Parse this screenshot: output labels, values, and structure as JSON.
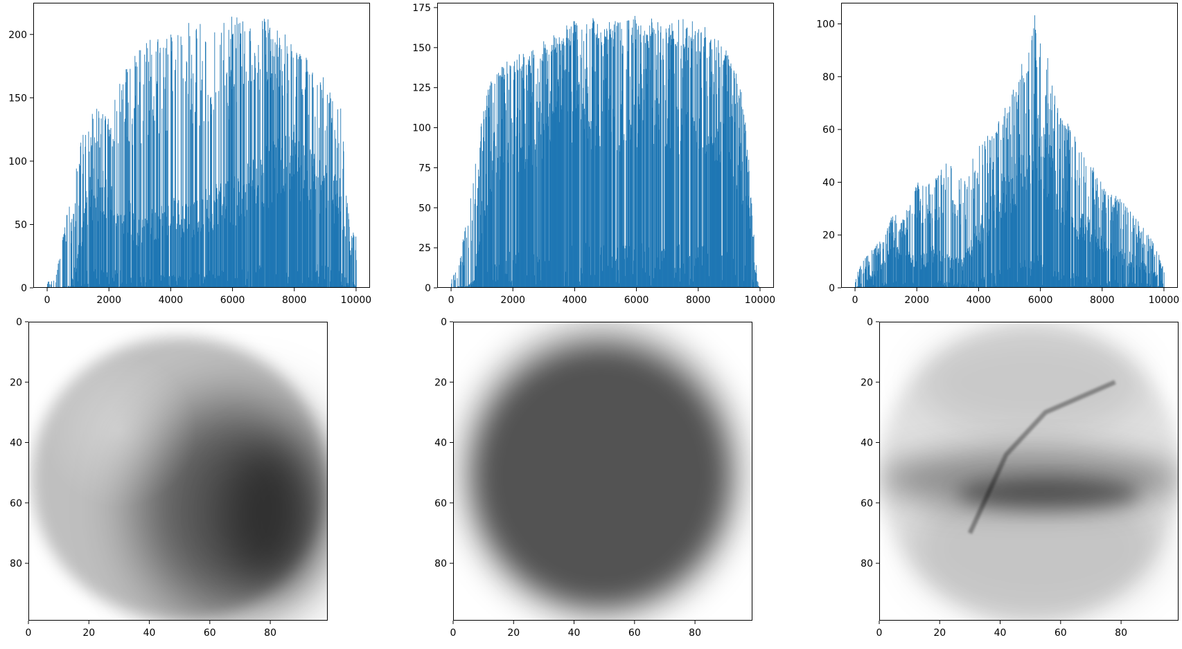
{
  "chart_data": [
    {
      "type": "bar",
      "title": "",
      "xlabel": "",
      "ylabel": "",
      "xlim": [
        0,
        10000
      ],
      "ylim": [
        0,
        225
      ],
      "xticks": [
        0,
        2000,
        4000,
        6000,
        8000,
        10000
      ],
      "xtick_labels": [
        "0",
        "2000",
        "4000",
        "6000",
        "8000",
        "10000"
      ],
      "yticks": [
        0,
        50,
        100,
        150,
        200
      ],
      "ytick_labels": [
        "0",
        "50",
        "100",
        "150",
        "200"
      ],
      "bar_color": "#1f77b4",
      "profile": {
        "x": [
          0,
          250,
          500,
          750,
          1000,
          1250,
          1500,
          2000,
          2500,
          3000,
          3500,
          4000,
          4500,
          5000,
          5500,
          6000,
          6500,
          7000,
          7500,
          8000,
          8500,
          9000,
          9500,
          9800,
          10000
        ],
        "peak": [
          5,
          6,
          40,
          80,
          100,
          150,
          150,
          140,
          180,
          190,
          200,
          200,
          210,
          210,
          205,
          215,
          220,
          220,
          205,
          195,
          180,
          170,
          145,
          40,
          48
        ],
        "base": [
          0,
          0,
          1,
          2,
          30,
          70,
          90,
          80,
          70,
          50,
          60,
          70,
          60,
          70,
          75,
          80,
          90,
          100,
          110,
          120,
          100,
          90,
          80,
          10,
          0
        ]
      }
    },
    {
      "type": "bar",
      "title": "",
      "xlabel": "",
      "ylabel": "",
      "xlim": [
        0,
        10000
      ],
      "ylim": [
        0,
        178
      ],
      "xticks": [
        0,
        2000,
        4000,
        6000,
        8000,
        10000
      ],
      "xtick_labels": [
        "0",
        "2000",
        "4000",
        "6000",
        "8000",
        "10000"
      ],
      "yticks": [
        0,
        25,
        50,
        75,
        100,
        125,
        150,
        175
      ],
      "ytick_labels": [
        "0",
        "25",
        "50",
        "75",
        "100",
        "125",
        "150",
        "175"
      ],
      "bar_color": "#1f77b4",
      "profile": {
        "x": [
          0,
          250,
          500,
          750,
          1000,
          1250,
          1500,
          2000,
          2500,
          3000,
          3500,
          4000,
          4500,
          5000,
          5500,
          6000,
          6500,
          7000,
          7500,
          8000,
          8500,
          9000,
          9500,
          9900,
          10000
        ],
        "peak": [
          5,
          15,
          45,
          75,
          110,
          130,
          140,
          145,
          150,
          155,
          160,
          170,
          170,
          165,
          170,
          170,
          170,
          165,
          170,
          165,
          160,
          150,
          115,
          5,
          0
        ],
        "base": [
          0,
          1,
          1,
          5,
          60,
          90,
          110,
          115,
          120,
          130,
          135,
          140,
          140,
          138,
          140,
          140,
          140,
          138,
          138,
          135,
          128,
          110,
          80,
          2,
          0
        ]
      }
    },
    {
      "type": "bar",
      "title": "",
      "xlabel": "",
      "ylabel": "",
      "xlim": [
        0,
        10000
      ],
      "ylim": [
        0,
        108
      ],
      "xticks": [
        0,
        2000,
        4000,
        6000,
        8000,
        10000
      ],
      "xtick_labels": [
        "0",
        "2000",
        "4000",
        "6000",
        "8000",
        "10000"
      ],
      "yticks": [
        0,
        20,
        40,
        60,
        80,
        100
      ],
      "ytick_labels": [
        "0",
        "20",
        "40",
        "60",
        "80",
        "100"
      ],
      "bar_color": "#1f77b4",
      "profile": {
        "x": [
          0,
          250,
          500,
          750,
          1000,
          1250,
          1500,
          2000,
          2500,
          3000,
          3500,
          4000,
          4500,
          5000,
          5500,
          5800,
          6000,
          6500,
          7000,
          7500,
          8000,
          8500,
          9000,
          9500,
          10000
        ],
        "peak": [
          5,
          10,
          15,
          18,
          22,
          30,
          25,
          40,
          40,
          50,
          40,
          55,
          60,
          72,
          90,
          104,
          100,
          72,
          60,
          50,
          40,
          35,
          28,
          20,
          10
        ],
        "base": [
          0,
          2,
          5,
          8,
          12,
          20,
          15,
          10,
          15,
          12,
          10,
          25,
          35,
          45,
          60,
          70,
          65,
          45,
          30,
          25,
          20,
          15,
          12,
          8,
          2
        ]
      }
    },
    {
      "type": "heatmap",
      "title": "",
      "xlabel": "",
      "ylabel": "",
      "xlim": [
        0,
        99
      ],
      "ylim": [
        99,
        0
      ],
      "xticks": [
        0,
        20,
        40,
        60,
        80
      ],
      "xtick_labels": [
        "0",
        "20",
        "40",
        "60",
        "80"
      ],
      "yticks": [
        0,
        20,
        40,
        60,
        80
      ],
      "ytick_labels": [
        "0",
        "20",
        "40",
        "60",
        "80"
      ],
      "colormap": "gray_r",
      "content": "blurred sphere, lighter upper-left highlight, darker lower-right shadow",
      "ellipses": [
        {
          "cx": 50,
          "cy": 52,
          "rx": 49,
          "ry": 47,
          "darkness": 0.25,
          "blur": 2.5
        },
        {
          "cx": 68,
          "cy": 62,
          "rx": 32,
          "ry": 36,
          "darkness": 0.55,
          "blur": 10
        },
        {
          "cx": 80,
          "cy": 64,
          "rx": 16,
          "ry": 24,
          "darkness": 0.45,
          "blur": 7
        }
      ],
      "highlight": {
        "cx": 30,
        "cy": 36,
        "r": 16,
        "amount": 0.3
      }
    },
    {
      "type": "heatmap",
      "title": "",
      "xlabel": "",
      "ylabel": "",
      "xlim": [
        0,
        99
      ],
      "ylim": [
        99,
        0
      ],
      "xticks": [
        0,
        20,
        40,
        60,
        80
      ],
      "xtick_labels": [
        "0",
        "20",
        "40",
        "60",
        "80"
      ],
      "yticks": [
        0,
        20,
        40,
        60,
        80
      ],
      "ytick_labels": [
        "0",
        "20",
        "40",
        "60",
        "80"
      ],
      "colormap": "gray_r",
      "content": "dark blurred round blob filling most of the frame",
      "ellipses": [
        {
          "cx": 49,
          "cy": 50,
          "rx": 47,
          "ry": 49,
          "darkness": 0.35,
          "blur": 5
        },
        {
          "cx": 49,
          "cy": 51,
          "rx": 41,
          "ry": 42,
          "darkness": 0.5,
          "blur": 4
        }
      ]
    },
    {
      "type": "heatmap",
      "title": "",
      "xlabel": "",
      "ylabel": "",
      "xlim": [
        0,
        99
      ],
      "ylim": [
        99,
        0
      ],
      "xticks": [
        0,
        20,
        40,
        60,
        80
      ],
      "xtick_labels": [
        "0",
        "20",
        "40",
        "60",
        "80"
      ],
      "yticks": [
        0,
        20,
        40,
        60,
        80
      ],
      "ytick_labels": [
        "0",
        "20",
        "40",
        "60",
        "80"
      ],
      "colormap": "gray_r",
      "content": "faint overlapping shapes with a dark horizontal band across the middle",
      "ellipses": [
        {
          "cx": 50,
          "cy": 50,
          "rx": 50,
          "ry": 50,
          "darkness": 0.12,
          "blur": 3
        },
        {
          "cx": 50,
          "cy": 20,
          "rx": 38,
          "ry": 18,
          "darkness": 0.1,
          "blur": 6
        },
        {
          "cx": 52,
          "cy": 75,
          "rx": 42,
          "ry": 24,
          "darkness": 0.12,
          "blur": 6
        },
        {
          "cx": 50,
          "cy": 52,
          "rx": 50,
          "ry": 10,
          "darkness": 0.35,
          "blur": 5
        },
        {
          "cx": 56,
          "cy": 57,
          "rx": 30,
          "ry": 5,
          "darkness": 0.4,
          "blur": 3
        }
      ],
      "strokes": [
        {
          "path": [
            [
              30,
              70
            ],
            [
              42,
              44
            ],
            [
              55,
              30
            ],
            [
              78,
              20
            ]
          ],
          "darkness": 0.35,
          "width": 1.5
        }
      ]
    }
  ]
}
